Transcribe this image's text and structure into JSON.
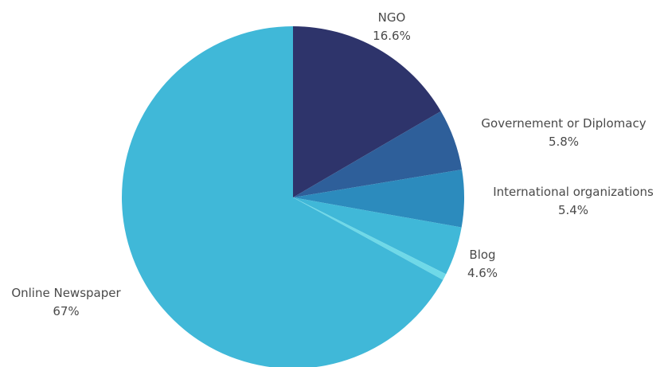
{
  "chart_data": {
    "type": "pie",
    "title": "",
    "start_angle_deg": 0,
    "direction": "clockwise",
    "slices": [
      {
        "label": "NGO",
        "value": 16.6,
        "value_label": "16.6%",
        "color": "#2e346b"
      },
      {
        "label": "Governement or Diplomacy",
        "value": 5.8,
        "value_label": "5.8%",
        "color": "#2e5f9a"
      },
      {
        "label": "International organizations",
        "value": 5.4,
        "value_label": "5.4%",
        "color": "#2c8bbd"
      },
      {
        "label": "Blog",
        "value": 4.6,
        "value_label": "4.6%",
        "color": "#40b8d8"
      },
      {
        "label": "",
        "value": 0.6,
        "value_label": "",
        "color": "#6fd9e8"
      },
      {
        "label": "Online Newspaper",
        "value": 67,
        "value_label": "67%",
        "color": "#40b8d8"
      }
    ]
  }
}
